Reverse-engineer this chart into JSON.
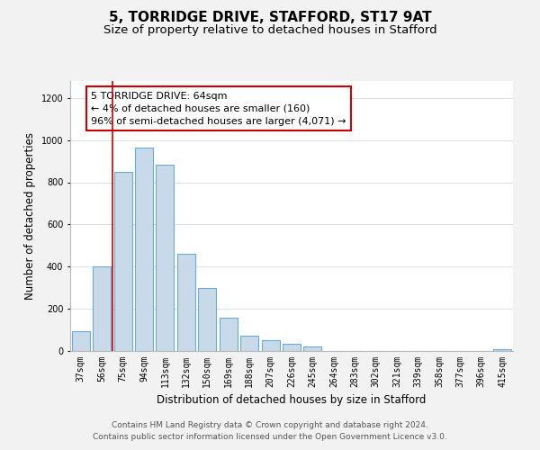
{
  "title": "5, TORRIDGE DRIVE, STAFFORD, ST17 9AT",
  "subtitle": "Size of property relative to detached houses in Stafford",
  "xlabel": "Distribution of detached houses by size in Stafford",
  "ylabel": "Number of detached properties",
  "categories": [
    "37sqm",
    "56sqm",
    "75sqm",
    "94sqm",
    "113sqm",
    "132sqm",
    "150sqm",
    "169sqm",
    "188sqm",
    "207sqm",
    "226sqm",
    "245sqm",
    "264sqm",
    "283sqm",
    "302sqm",
    "321sqm",
    "339sqm",
    "358sqm",
    "377sqm",
    "396sqm",
    "415sqm"
  ],
  "values": [
    95,
    400,
    848,
    965,
    885,
    460,
    298,
    160,
    72,
    52,
    35,
    20,
    0,
    0,
    0,
    0,
    0,
    0,
    0,
    0,
    10
  ],
  "bar_color": "#c8daea",
  "bar_edge_color": "#6aaad4",
  "vline_x": 1.5,
  "vline_color": "#cc0000",
  "annotation_text": "5 TORRIDGE DRIVE: 64sqm\n← 4% of detached houses are smaller (160)\n96% of semi-detached houses are larger (4,071) →",
  "annotation_box_color": "#ffffff",
  "annotation_box_edge_color": "#cc0000",
  "ylim": [
    0,
    1280
  ],
  "yticks": [
    0,
    200,
    400,
    600,
    800,
    1000,
    1200
  ],
  "footer1": "Contains HM Land Registry data © Crown copyright and database right 2024.",
  "footer2": "Contains public sector information licensed under the Open Government Licence v3.0.",
  "bg_color": "#f2f2f2",
  "plot_bg_color": "#ffffff",
  "title_fontsize": 11,
  "subtitle_fontsize": 9.5,
  "axis_label_fontsize": 8.5,
  "tick_fontsize": 7,
  "footer_fontsize": 6.5,
  "annotation_fontsize": 8
}
